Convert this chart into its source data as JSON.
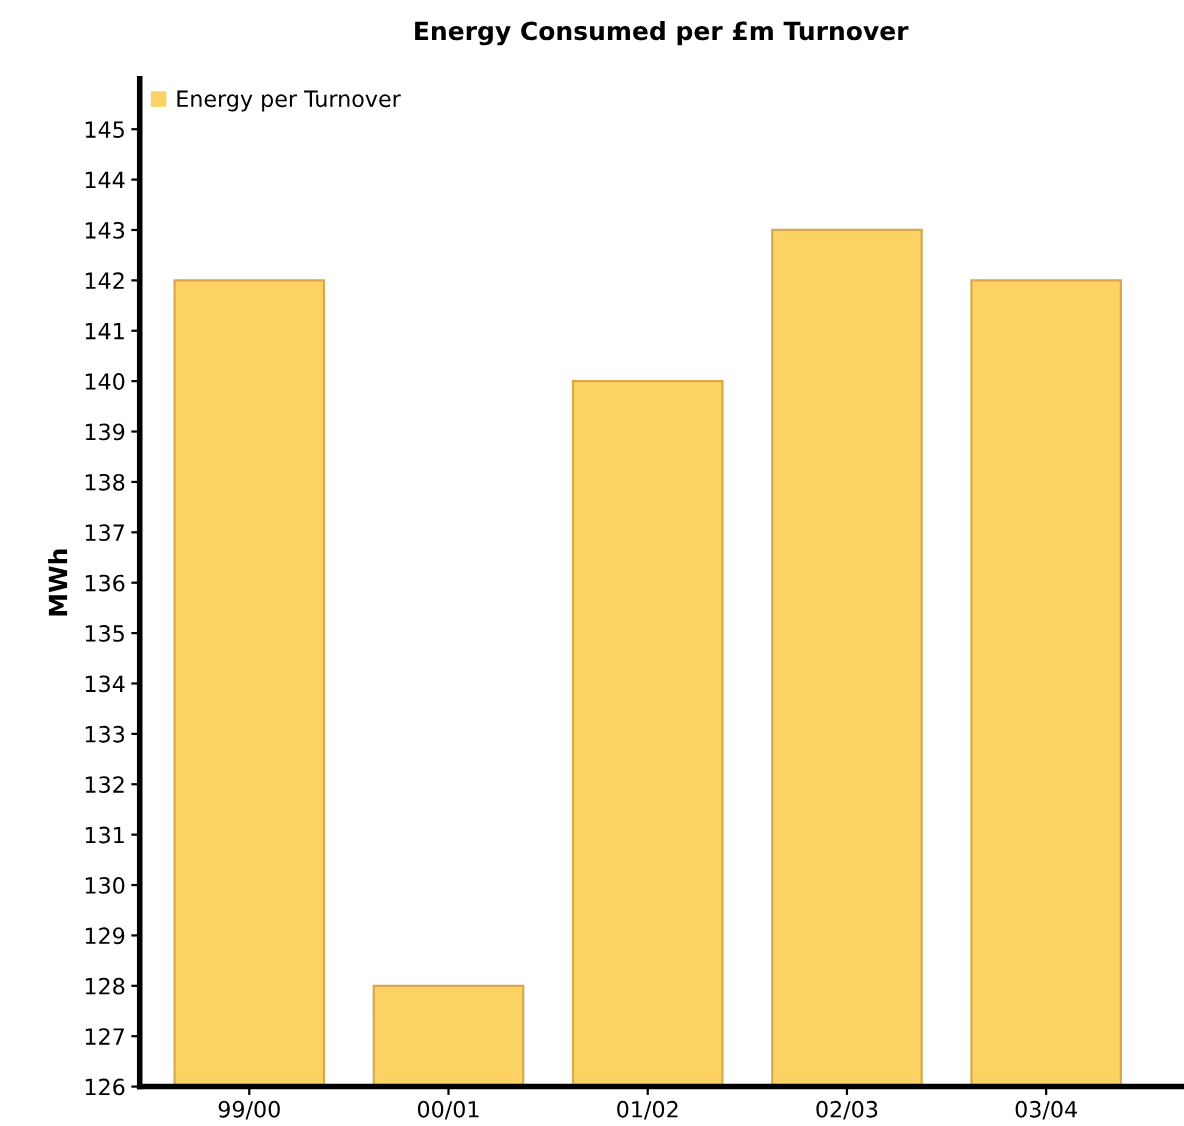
{
  "chart_data": {
    "type": "bar",
    "title": "Energy Consumed per £m Turnover",
    "ylabel": "MWh",
    "categories": [
      "99/00",
      "00/01",
      "01/02",
      "02/03",
      "03/04"
    ],
    "series": [
      {
        "name": "Energy per Turnover",
        "color": "#fcd264",
        "values": [
          142,
          128,
          140,
          143,
          142
        ]
      }
    ],
    "ylim": [
      126,
      146
    ],
    "yticks": [
      126,
      127,
      128,
      129,
      130,
      131,
      132,
      133,
      134,
      135,
      136,
      137,
      138,
      139,
      140,
      141,
      142,
      143,
      144,
      145
    ],
    "grid": false,
    "legend": "top left"
  }
}
